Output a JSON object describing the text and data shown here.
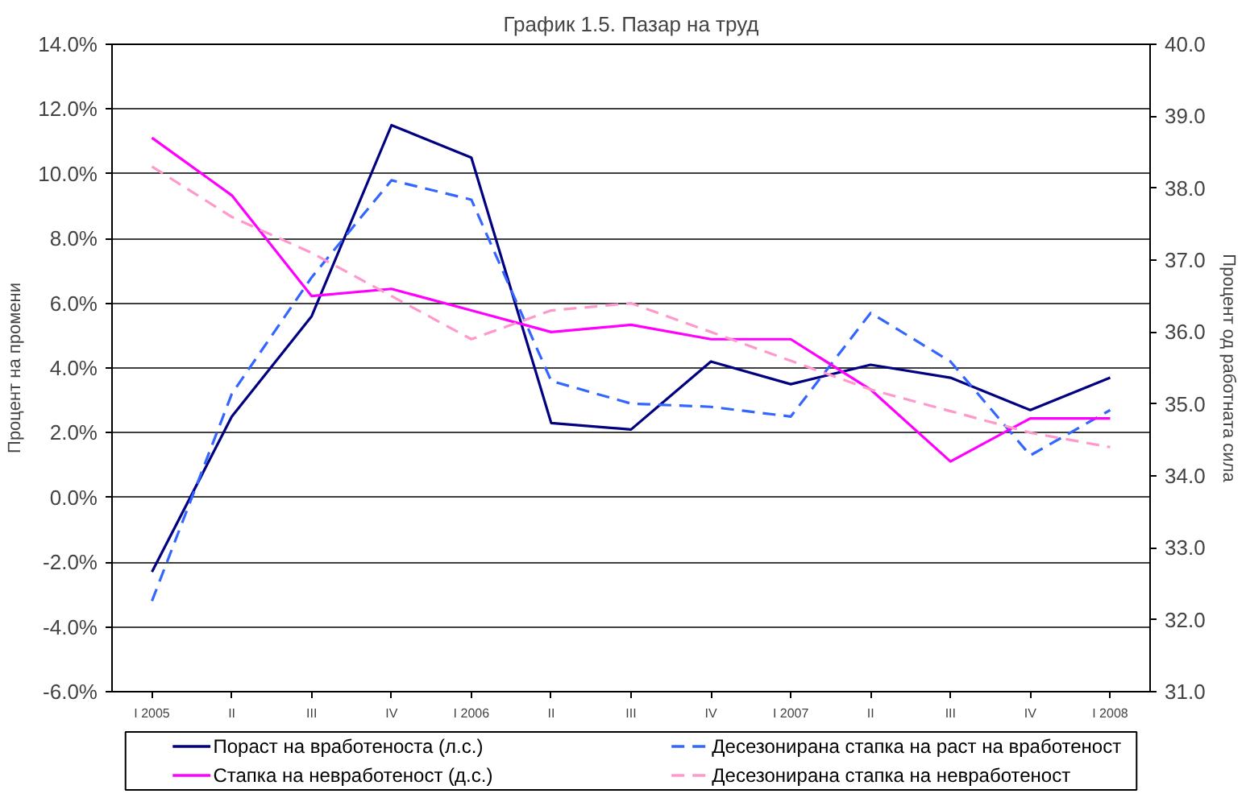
{
  "chart_data": {
    "type": "line",
    "title": "График 1.5. Пазар на труд",
    "ylabel": "Процент на промени",
    "y2label": "Процент од работната сила",
    "categories": [
      "I 2005",
      "II",
      "III",
      "IV",
      "I 2006",
      "II",
      "III",
      "IV",
      "I 2007",
      "II",
      "III",
      "IV",
      "I 2008"
    ],
    "ylim": [
      -6,
      14
    ],
    "yticks": [
      {
        "value": -6,
        "label": "-6.0%"
      },
      {
        "value": -4,
        "label": "-4.0%"
      },
      {
        "value": -2,
        "label": "-2.0%"
      },
      {
        "value": 0,
        "label": "0.0%"
      },
      {
        "value": 2,
        "label": "2.0%"
      },
      {
        "value": 4,
        "label": "4.0%"
      },
      {
        "value": 6,
        "label": "6.0%"
      },
      {
        "value": 8,
        "label": "8.0%"
      },
      {
        "value": 10,
        "label": "10.0%"
      },
      {
        "value": 12,
        "label": "12.0%"
      },
      {
        "value": 14,
        "label": "14.0%"
      }
    ],
    "y2lim": [
      31,
      40
    ],
    "y2ticks": [
      {
        "value": 31,
        "label": "31.0"
      },
      {
        "value": 32,
        "label": "32.0"
      },
      {
        "value": 33,
        "label": "33.0"
      },
      {
        "value": 34,
        "label": "34.0"
      },
      {
        "value": 35,
        "label": "35.0"
      },
      {
        "value": 36,
        "label": "36.0"
      },
      {
        "value": 37,
        "label": "37.0"
      },
      {
        "value": 38,
        "label": "38.0"
      },
      {
        "value": 39,
        "label": "39.0"
      },
      {
        "value": 40,
        "label": "40.0"
      }
    ],
    "grid": "y",
    "legend": "bottom",
    "series": [
      {
        "name": "Пораст на вработеноста (л.с.)",
        "color": "#000080",
        "line_style": "solid",
        "values": [
          -2.3,
          2.5,
          5.6,
          11.5,
          10.5,
          2.3,
          2.1,
          4.2,
          3.5,
          4.1,
          3.7,
          2.7,
          3.7
        ]
      },
      {
        "name": "Десезонирана стапка на раст на вработеност",
        "color": "#3366ff",
        "line_style": "dashed",
        "values": [
          -3.2,
          3.2,
          6.8,
          9.8,
          9.2,
          3.6,
          2.9,
          2.8,
          2.5,
          5.7,
          4.2,
          1.3,
          2.7
        ]
      },
      {
        "name": "Стапка на невработеност (д.с.)",
        "color": "#ff00ff",
        "line_style": "solid",
        "axis": "y2",
        "values": [
          38.7,
          37.9,
          36.5,
          36.6,
          36.3,
          36.0,
          36.1,
          35.9,
          35.9,
          35.2,
          34.2,
          34.8,
          34.8
        ]
      },
      {
        "name": "Десезонирана стапка на невработеност",
        "color": "#ff99cc",
        "line_style": "dashed",
        "axis": "y2",
        "values": [
          38.3,
          37.6,
          37.1,
          36.5,
          35.9,
          36.3,
          36.4,
          36.0,
          35.6,
          35.2,
          34.9,
          34.6,
          34.4
        ]
      }
    ]
  }
}
